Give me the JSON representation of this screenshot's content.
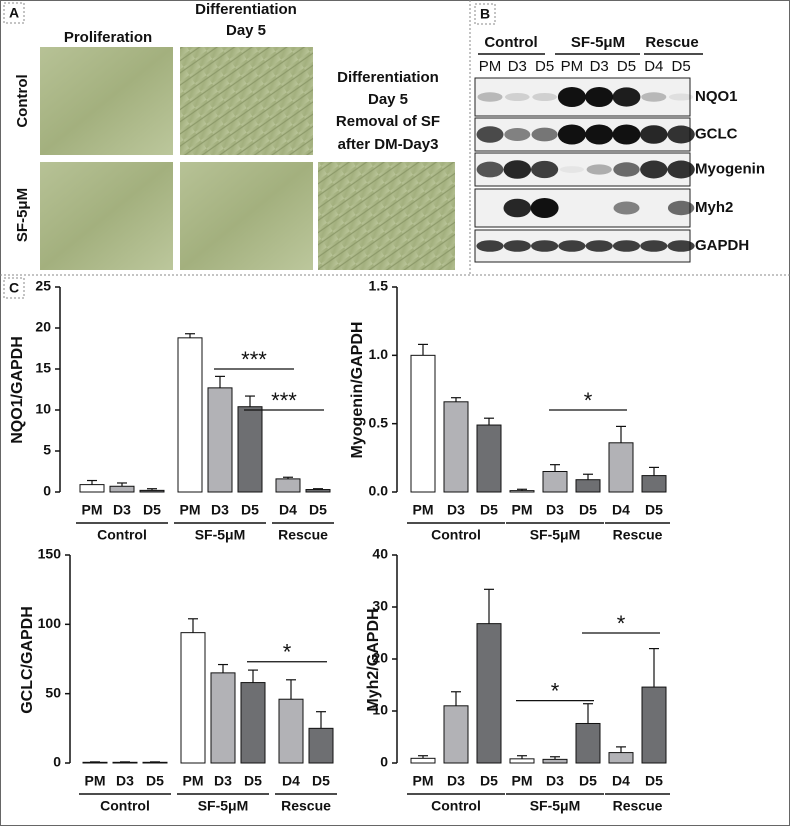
{
  "panel_a": {
    "letter": "A",
    "col1": "Proliferation",
    "col2": [
      "Differentiation",
      "Day 5"
    ],
    "col3": [
      "Differentiation",
      "Day 5",
      "Removal of SF",
      "after DM-Day3"
    ],
    "rows": [
      "Control",
      "SF-5μM"
    ]
  },
  "panel_b": {
    "letter": "B",
    "groups": [
      "Control",
      "SF-5μM",
      "Rescue"
    ],
    "lanes": [
      "PM",
      "D3",
      "D5",
      "PM",
      "D3",
      "D5",
      "D4",
      "D5"
    ],
    "proteins": [
      "NQO1",
      "GCLC",
      "Myogenin",
      "Myh2",
      "GAPDH"
    ]
  },
  "panel_c": {
    "letter": "C"
  },
  "chart_data": [
    {
      "type": "bar",
      "ylabel": "NQO1/GAPDH",
      "ylim": [
        0,
        25
      ],
      "yticks": [
        0,
        5,
        10,
        15,
        20,
        25
      ],
      "groups": [
        {
          "name": "Control",
          "categories": [
            "PM",
            "D3",
            "D5"
          ],
          "values": [
            0.9,
            0.7,
            0.2
          ],
          "errors": [
            0.5,
            0.4,
            0.2
          ],
          "colors": [
            "#ffffff",
            "#b2b2b6",
            "#6e6f72"
          ]
        },
        {
          "name": "SF-5μM",
          "categories": [
            "PM",
            "D3",
            "D5"
          ],
          "values": [
            18.8,
            12.7,
            10.4
          ],
          "errors": [
            0.5,
            1.4,
            1.3
          ],
          "colors": [
            "#ffffff",
            "#b2b2b6",
            "#6e6f72"
          ]
        },
        {
          "name": "Rescue",
          "categories": [
            "D4",
            "D5"
          ],
          "values": [
            1.6,
            0.3
          ],
          "errors": [
            0.2,
            0.1
          ],
          "colors": [
            "#b2b2b6",
            "#6e6f72"
          ]
        }
      ],
      "annotations": [
        {
          "text": "***",
          "y": 15
        },
        {
          "text": "***",
          "y": 10
        }
      ]
    },
    {
      "type": "bar",
      "ylabel": "Myogenin/GAPDH",
      "ylim": [
        0,
        1.5
      ],
      "yticks": [
        {
          "value": 0,
          "label": "0.0"
        },
        0.5,
        {
          "value": 1,
          "label": "1.0"
        },
        1.5
      ],
      "groups": [
        {
          "name": "Control",
          "categories": [
            "PM",
            "D3",
            "D5"
          ],
          "values": [
            1.0,
            0.66,
            0.49
          ],
          "errors": [
            0.08,
            0.03,
            0.05
          ],
          "colors": [
            "#ffffff",
            "#b2b2b6",
            "#6e6f72"
          ]
        },
        {
          "name": "SF-5μM",
          "categories": [
            "PM",
            "D3",
            "D5"
          ],
          "values": [
            0.01,
            0.15,
            0.09
          ],
          "errors": [
            0.01,
            0.05,
            0.04
          ],
          "colors": [
            "#ffffff",
            "#b2b2b6",
            "#6e6f72"
          ]
        },
        {
          "name": "Rescue",
          "categories": [
            "D4",
            "D5"
          ],
          "values": [
            0.36,
            0.12
          ],
          "errors": [
            0.12,
            0.06
          ],
          "colors": [
            "#b2b2b6",
            "#6e6f72"
          ]
        }
      ],
      "annotations": [
        {
          "text": "*",
          "y": 0.6
        }
      ]
    },
    {
      "type": "bar",
      "ylabel": "GCLC/GAPDH",
      "ylim": [
        0,
        150
      ],
      "yticks": [
        0,
        50,
        100,
        150
      ],
      "groups": [
        {
          "name": "Control",
          "categories": [
            "PM",
            "D3",
            "D5"
          ],
          "values": [
            0.5,
            0.5,
            0.5
          ],
          "errors": [
            0.3,
            0.3,
            0.3
          ],
          "colors": [
            "#ffffff",
            "#b2b2b6",
            "#6e6f72"
          ]
        },
        {
          "name": "SF-5μM",
          "categories": [
            "PM",
            "D3",
            "D5"
          ],
          "values": [
            94,
            65,
            58
          ],
          "errors": [
            10,
            6,
            9
          ],
          "colors": [
            "#ffffff",
            "#b2b2b6",
            "#6e6f72"
          ]
        },
        {
          "name": "Rescue",
          "categories": [
            "D4",
            "D5"
          ],
          "values": [
            46,
            25
          ],
          "errors": [
            14,
            12
          ],
          "colors": [
            "#b2b2b6",
            "#6e6f72"
          ]
        }
      ],
      "annotations": [
        {
          "text": "*",
          "y": 73
        }
      ]
    },
    {
      "type": "bar",
      "ylabel": "Myh2/GAPDH",
      "ylim": [
        0,
        40
      ],
      "yticks": [
        0,
        10,
        20,
        30,
        40
      ],
      "groups": [
        {
          "name": "Control",
          "categories": [
            "PM",
            "D3",
            "D5"
          ],
          "values": [
            0.9,
            11,
            26.8
          ],
          "errors": [
            0.5,
            2.7,
            6.6
          ],
          "colors": [
            "#ffffff",
            "#b2b2b6",
            "#6e6f72"
          ]
        },
        {
          "name": "SF-5μM",
          "categories": [
            "PM",
            "D3",
            "D5"
          ],
          "values": [
            0.8,
            0.7,
            7.6
          ],
          "errors": [
            0.6,
            0.5,
            3.8
          ],
          "colors": [
            "#ffffff",
            "#b2b2b6",
            "#6e6f72"
          ]
        },
        {
          "name": "Rescue",
          "categories": [
            "D4",
            "D5"
          ],
          "values": [
            2,
            14.6
          ],
          "errors": [
            1.1,
            7.4
          ],
          "colors": [
            "#b2b2b6",
            "#6e6f72"
          ]
        }
      ],
      "annotations": [
        {
          "text": "*",
          "y": 12
        },
        {
          "text": "*",
          "y": 25
        }
      ]
    }
  ]
}
